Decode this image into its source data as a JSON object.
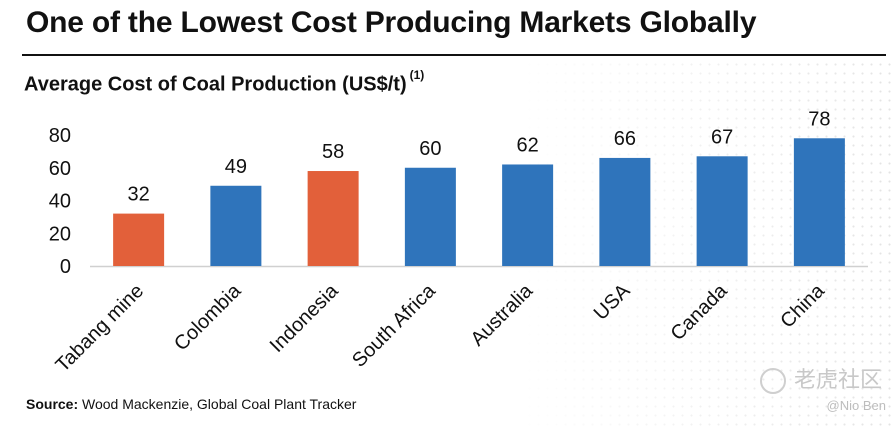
{
  "title": "One of the Lowest Cost Producing Markets Globally",
  "subtitle": "Average Cost of Coal Production (US$/t)",
  "subtitle_note": "(1)",
  "source_label": "Source:",
  "source_text": "Wood Mackenzie, Global Coal Plant Tracker",
  "watermark": {
    "text": "老虎社区",
    "handle": "@Nio Ben"
  },
  "colors": {
    "highlight": "#E2603A",
    "default": "#2F74BB"
  },
  "chart_data": {
    "type": "bar",
    "title": "Average Cost of Coal Production (US$/t)",
    "xlabel": "",
    "ylabel": "",
    "ylim": [
      0,
      80
    ],
    "yticks": [
      0,
      20,
      40,
      60,
      80
    ],
    "categories": [
      "Tabang mine",
      "Colombia",
      "Indonesia",
      "South Africa",
      "Australia",
      "USA",
      "Canada",
      "China"
    ],
    "values": [
      32,
      49,
      58,
      60,
      62,
      66,
      67,
      78
    ],
    "highlighted": [
      "Tabang mine",
      "Indonesia"
    ],
    "data_labels": [
      "32",
      "49",
      "58",
      "60",
      "62",
      "66",
      "67",
      "78"
    ]
  }
}
